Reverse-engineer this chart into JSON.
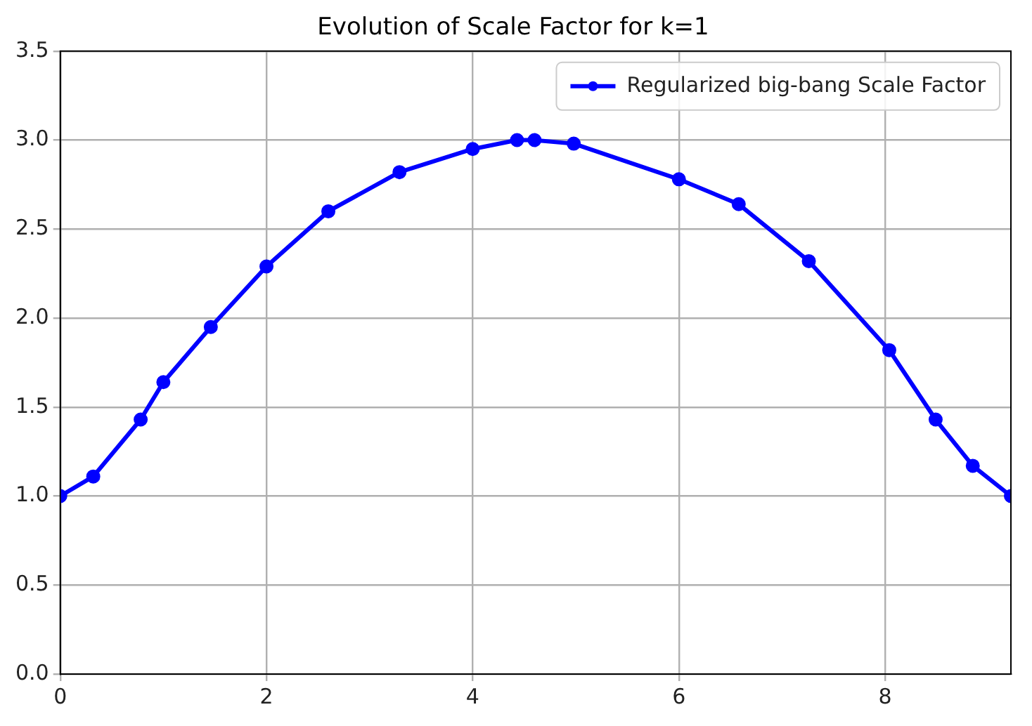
{
  "chart_data": {
    "type": "line",
    "title": "Evolution of Scale Factor for k=1",
    "x": [
      0,
      0.32,
      0.78,
      1.0,
      1.46,
      2.0,
      2.6,
      3.29,
      4.0,
      4.43,
      4.6,
      4.98,
      6.0,
      6.58,
      7.26,
      8.04,
      8.49,
      8.85,
      9.22
    ],
    "series": [
      {
        "name": "Regularized big-bang Scale Factor",
        "color": "#0000ff",
        "values": [
          1.0,
          1.11,
          1.43,
          1.64,
          1.95,
          2.29,
          2.6,
          2.82,
          2.95,
          3.0,
          3.0,
          2.98,
          2.78,
          2.64,
          2.32,
          1.82,
          1.43,
          1.17,
          1.0
        ]
      }
    ],
    "xlim": [
      0,
      9.22
    ],
    "xticks": [
      0,
      2,
      4,
      6,
      8
    ],
    "ylim": [
      0,
      3.5
    ],
    "yticks": [
      {
        "value": 0,
        "label": "0.0"
      },
      {
        "value": 0.5,
        "label": "0.5"
      },
      {
        "value": 1,
        "label": "1.0"
      },
      {
        "value": 1.5,
        "label": "1.5"
      },
      {
        "value": 2,
        "label": "2.0"
      },
      {
        "value": 2.5,
        "label": "2.5"
      },
      {
        "value": 3,
        "label": "3.0"
      },
      {
        "value": 3.5,
        "label": "3.5"
      }
    ],
    "grid": true,
    "legend": "top right",
    "marker": "circle",
    "line_style": "solid"
  }
}
